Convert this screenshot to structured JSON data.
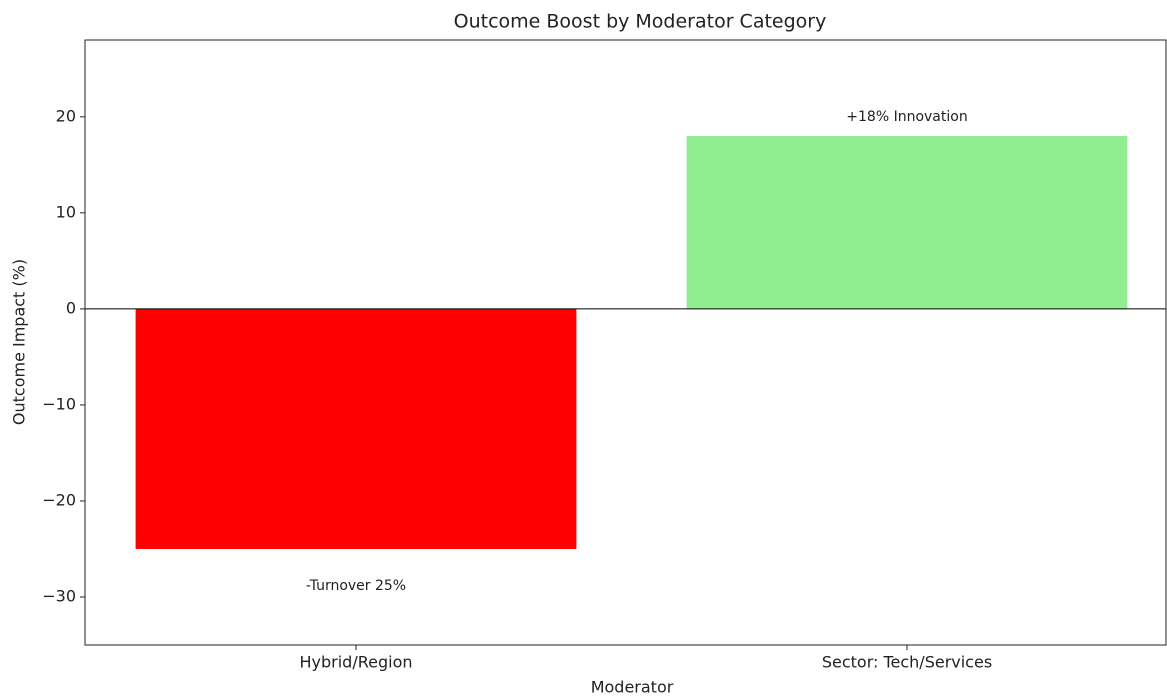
{
  "chart_data": {
    "type": "bar",
    "title": "Outcome Boost by Moderator Category",
    "xlabel": "Moderator",
    "ylabel": "Outcome Impact (%)",
    "categories": [
      "Hybrid/Region",
      "Sector: Tech/Services"
    ],
    "values": [
      -25,
      18
    ],
    "value_labels": [
      "-Turnover 25%",
      "+18% Innovation"
    ],
    "colors": [
      "#ff0000",
      "#90ee90"
    ],
    "ylim": [
      -35,
      28
    ],
    "yticks": [
      {
        "value": -30,
        "label": "−30"
      },
      {
        "value": -20,
        "label": "−20"
      },
      {
        "value": -10,
        "label": "−10"
      },
      0,
      10,
      20
    ]
  }
}
